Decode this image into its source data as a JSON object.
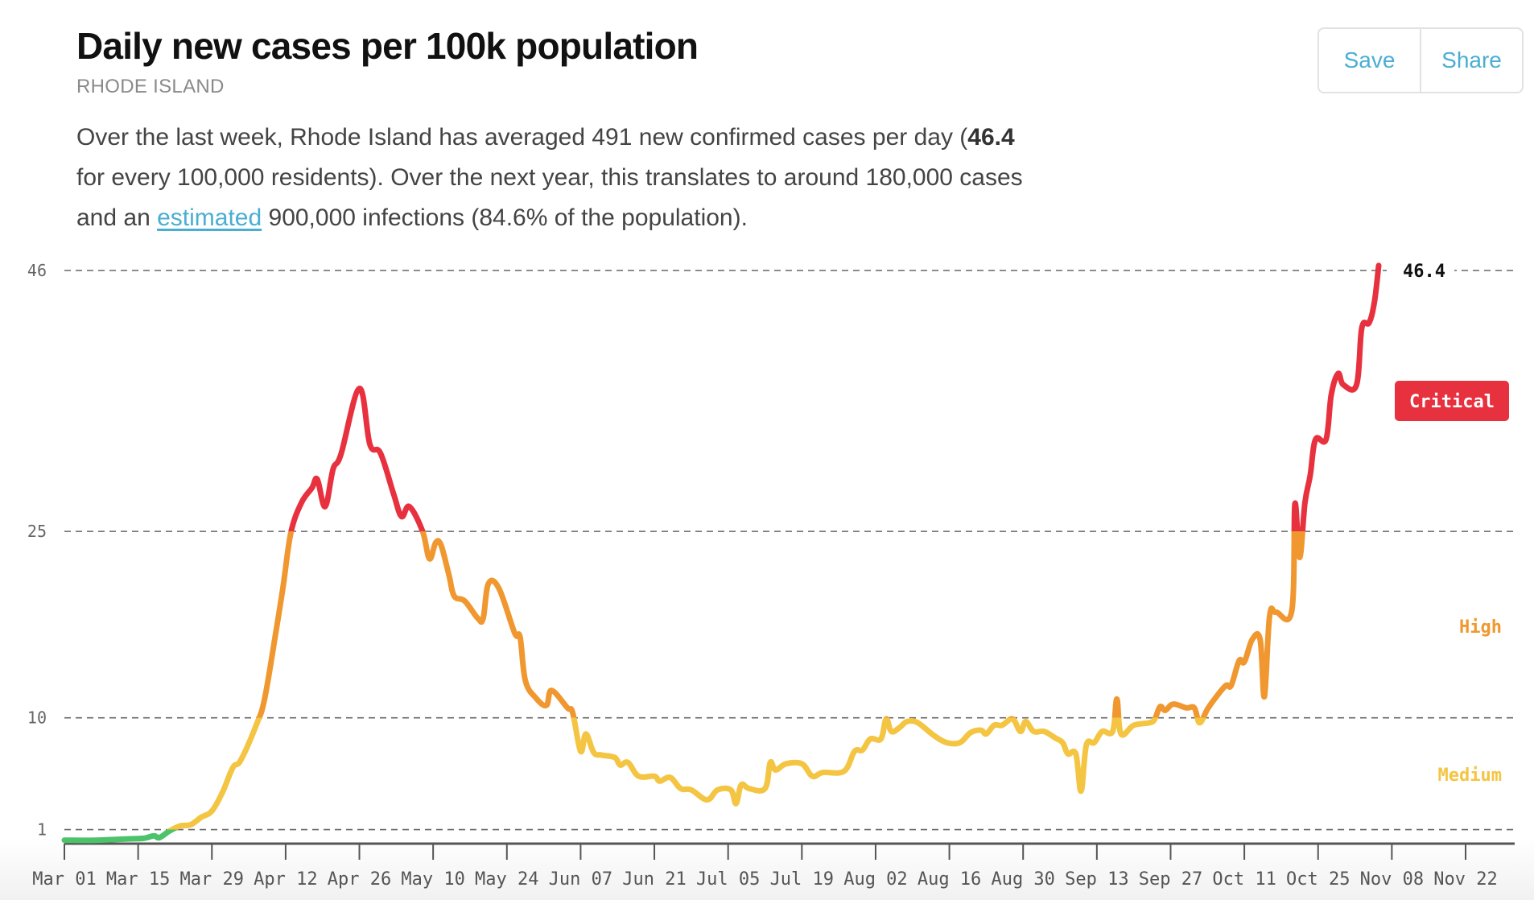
{
  "header": {
    "title": "Daily new cases per 100k population",
    "subtitle": "RHODE ISLAND",
    "save_label": "Save",
    "share_label": "Share"
  },
  "description": {
    "part1": "Over the last week, Rhode Island has averaged 491 new confirmed cases per day (",
    "bold_value": "46.4",
    "part2": " for every 100,000 residents). Over the next year, this translates to around 180,000 cases and an ",
    "link_text": "estimated",
    "part3": " 900,000 infections (84.6% of the population)."
  },
  "colors": {
    "link": "#4aaed3",
    "low": "#4cc26a",
    "medium": "#f4c542",
    "high": "#f0982f",
    "critical": "#e8313f"
  },
  "chart_data": {
    "type": "line",
    "title": "Daily new cases per 100k population",
    "subtitle": "RHODE ISLAND",
    "xlabel": "",
    "ylabel": "",
    "x_unit": "days since Mar 01",
    "xlim": [
      0,
      266
    ],
    "ylim": [
      0,
      46
    ],
    "y_gridlines": [
      1,
      10,
      25,
      46
    ],
    "y_tick_labels": [
      "1",
      "10",
      "25",
      "46"
    ],
    "x_tick_days": [
      0,
      14,
      28,
      42,
      56,
      70,
      84,
      98,
      112,
      126,
      140,
      154,
      168,
      182,
      196,
      210,
      224,
      238,
      252,
      266
    ],
    "x_tick_labels": [
      "Mar 01",
      "Mar 15",
      "Mar 29",
      "Apr 12",
      "Apr 26",
      "May 10",
      "May 24",
      "Jun 07",
      "Jun 21",
      "Jul 05",
      "Jul 19",
      "Aug 02",
      "Aug 16",
      "Aug 30",
      "Sep 13",
      "Sep 27",
      "Oct 11",
      "Oct 25",
      "Nov 08",
      "Nov 22"
    ],
    "grid": true,
    "current_value_label": "46.4",
    "risk_zones": [
      {
        "name": "Medium",
        "from": 1,
        "to": 10,
        "color": "#f4c542"
      },
      {
        "name": "High",
        "from": 10,
        "to": 25,
        "color": "#f0982f"
      },
      {
        "name": "Critical",
        "from": 25,
        "to": 46.4,
        "color": "#e8313f"
      }
    ],
    "zone_labels": {
      "critical": "Critical",
      "high": "High",
      "medium": "Medium"
    },
    "series": [
      {
        "name": "Daily new cases per 100k",
        "points": [
          {
            "day": 0,
            "value": 0.15
          },
          {
            "day": 6,
            "value": 0.15
          },
          {
            "day": 12,
            "value": 0.25
          },
          {
            "day": 15,
            "value": 0.3
          },
          {
            "day": 17,
            "value": 0.5
          },
          {
            "day": 18,
            "value": 0.35
          },
          {
            "day": 20,
            "value": 0.9
          },
          {
            "day": 22,
            "value": 1.3
          },
          {
            "day": 24,
            "value": 1.4
          },
          {
            "day": 26,
            "value": 2.0
          },
          {
            "day": 28,
            "value": 2.5
          },
          {
            "day": 30,
            "value": 4.0
          },
          {
            "day": 32,
            "value": 6.0
          },
          {
            "day": 33.5,
            "value": 6.6
          },
          {
            "day": 36.5,
            "value": 9.5
          },
          {
            "day": 38,
            "value": 11.5
          },
          {
            "day": 40,
            "value": 16.5
          },
          {
            "day": 41.5,
            "value": 20.5
          },
          {
            "day": 43,
            "value": 24.9
          },
          {
            "day": 45,
            "value": 27.3
          },
          {
            "day": 47,
            "value": 28.5
          },
          {
            "day": 48,
            "value": 29.2
          },
          {
            "day": 49.5,
            "value": 27.0
          },
          {
            "day": 51,
            "value": 30.0
          },
          {
            "day": 52.5,
            "value": 31.2
          },
          {
            "day": 56,
            "value": 36.5
          },
          {
            "day": 58,
            "value": 32.0
          },
          {
            "day": 60,
            "value": 31.3
          },
          {
            "day": 62.5,
            "value": 28.0
          },
          {
            "day": 64,
            "value": 26.2
          },
          {
            "day": 65.5,
            "value": 27.0
          },
          {
            "day": 68,
            "value": 25.0
          },
          {
            "day": 69.3,
            "value": 22.8
          },
          {
            "day": 70.5,
            "value": 24.1
          },
          {
            "day": 71.5,
            "value": 23.9
          },
          {
            "day": 73,
            "value": 21.5
          },
          {
            "day": 74,
            "value": 19.8
          },
          {
            "day": 76,
            "value": 19.4
          },
          {
            "day": 78.5,
            "value": 18.0
          },
          {
            "day": 79.5,
            "value": 18.0
          },
          {
            "day": 80.5,
            "value": 20.8
          },
          {
            "day": 82.5,
            "value": 20.4
          },
          {
            "day": 85.5,
            "value": 16.8
          },
          {
            "day": 86.5,
            "value": 16.5
          },
          {
            "day": 87.5,
            "value": 13.0
          },
          {
            "day": 89.5,
            "value": 11.6
          },
          {
            "day": 91.5,
            "value": 11.0
          },
          {
            "day": 92.5,
            "value": 12.2
          },
          {
            "day": 95.5,
            "value": 10.8
          },
          {
            "day": 96.5,
            "value": 10.4
          },
          {
            "day": 98,
            "value": 7.3
          },
          {
            "day": 99,
            "value": 8.7
          },
          {
            "day": 100.5,
            "value": 7.2
          },
          {
            "day": 102,
            "value": 7.0
          },
          {
            "day": 104.5,
            "value": 6.8
          },
          {
            "day": 105.5,
            "value": 6.2
          },
          {
            "day": 107,
            "value": 6.4
          },
          {
            "day": 109,
            "value": 5.3
          },
          {
            "day": 112,
            "value": 5.3
          },
          {
            "day": 113,
            "value": 4.9
          },
          {
            "day": 115,
            "value": 5.2
          },
          {
            "day": 117,
            "value": 4.3
          },
          {
            "day": 119,
            "value": 4.2
          },
          {
            "day": 122,
            "value": 3.4
          },
          {
            "day": 124,
            "value": 4.2
          },
          {
            "day": 126.5,
            "value": 4.2
          },
          {
            "day": 127.5,
            "value": 3.1
          },
          {
            "day": 128.5,
            "value": 4.6
          },
          {
            "day": 130,
            "value": 4.3
          },
          {
            "day": 133,
            "value": 4.3
          },
          {
            "day": 134,
            "value": 6.4
          },
          {
            "day": 135,
            "value": 5.8
          },
          {
            "day": 137,
            "value": 6.3
          },
          {
            "day": 140,
            "value": 6.3
          },
          {
            "day": 142,
            "value": 5.3
          },
          {
            "day": 144,
            "value": 5.6
          },
          {
            "day": 148,
            "value": 5.7
          },
          {
            "day": 150,
            "value": 7.3
          },
          {
            "day": 151.5,
            "value": 7.4
          },
          {
            "day": 153,
            "value": 8.3
          },
          {
            "day": 155,
            "value": 8.3
          },
          {
            "day": 156,
            "value": 9.9
          },
          {
            "day": 157,
            "value": 8.9
          },
          {
            "day": 158.5,
            "value": 9.2
          },
          {
            "day": 160,
            "value": 9.7
          },
          {
            "day": 162,
            "value": 9.6
          },
          {
            "day": 165,
            "value": 8.6
          },
          {
            "day": 167.5,
            "value": 8.0
          },
          {
            "day": 170,
            "value": 8.0
          },
          {
            "day": 172,
            "value": 8.8
          },
          {
            "day": 174,
            "value": 9.0
          },
          {
            "day": 175,
            "value": 8.7
          },
          {
            "day": 176.5,
            "value": 9.4
          },
          {
            "day": 178,
            "value": 9.4
          },
          {
            "day": 180,
            "value": 9.9
          },
          {
            "day": 181.5,
            "value": 8.9
          },
          {
            "day": 182.5,
            "value": 9.7
          },
          {
            "day": 184,
            "value": 8.9
          },
          {
            "day": 186,
            "value": 8.9
          },
          {
            "day": 188,
            "value": 8.4
          },
          {
            "day": 189.5,
            "value": 8.0
          },
          {
            "day": 190.5,
            "value": 7.1
          },
          {
            "day": 192,
            "value": 7.1
          },
          {
            "day": 193,
            "value": 4.1
          },
          {
            "day": 194,
            "value": 7.8
          },
          {
            "day": 195.5,
            "value": 8.0
          },
          {
            "day": 197,
            "value": 8.9
          },
          {
            "day": 199,
            "value": 8.9
          },
          {
            "day": 199.8,
            "value": 11.5
          },
          {
            "day": 200.6,
            "value": 8.7
          },
          {
            "day": 203,
            "value": 9.4
          },
          {
            "day": 206,
            "value": 9.6
          },
          {
            "day": 207,
            "value": 9.9
          },
          {
            "day": 208,
            "value": 10.9
          },
          {
            "day": 209,
            "value": 10.6
          },
          {
            "day": 210.5,
            "value": 11.1
          },
          {
            "day": 213,
            "value": 10.8
          },
          {
            "day": 214.5,
            "value": 10.8
          },
          {
            "day": 215.5,
            "value": 9.6
          },
          {
            "day": 217,
            "value": 10.7
          },
          {
            "day": 218.5,
            "value": 11.6
          },
          {
            "day": 220.5,
            "value": 12.6
          },
          {
            "day": 221.5,
            "value": 12.6
          },
          {
            "day": 223,
            "value": 14.6
          },
          {
            "day": 224,
            "value": 14.5
          },
          {
            "day": 225.5,
            "value": 16.3
          },
          {
            "day": 227,
            "value": 16.3
          },
          {
            "day": 227.8,
            "value": 11.7
          },
          {
            "day": 228.8,
            "value": 18.2
          },
          {
            "day": 230,
            "value": 18.5
          },
          {
            "day": 233,
            "value": 18.6
          },
          {
            "day": 233.6,
            "value": 27.2
          },
          {
            "day": 234.5,
            "value": 22.9
          },
          {
            "day": 235.5,
            "value": 27.3
          },
          {
            "day": 236.5,
            "value": 29.5
          },
          {
            "day": 237.5,
            "value": 32.4
          },
          {
            "day": 239.5,
            "value": 32.4
          },
          {
            "day": 240.5,
            "value": 36.0
          },
          {
            "day": 241.8,
            "value": 37.7
          },
          {
            "day": 242.8,
            "value": 36.8
          },
          {
            "day": 245.3,
            "value": 36.8
          },
          {
            "day": 246.3,
            "value": 41.4
          },
          {
            "day": 247.7,
            "value": 41.8
          },
          {
            "day": 248.7,
            "value": 43.5
          },
          {
            "day": 249.5,
            "value": 46.4
          }
        ]
      }
    ]
  }
}
